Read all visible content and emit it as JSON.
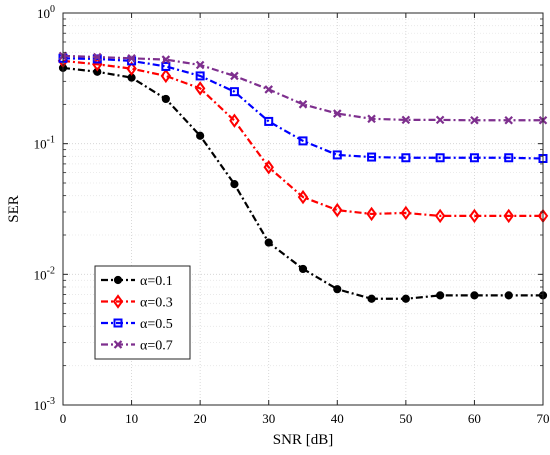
{
  "chart_data": {
    "type": "line",
    "xlabel": "SNR [dB]",
    "ylabel": "SER",
    "x": [
      0,
      5,
      10,
      15,
      20,
      25,
      30,
      35,
      40,
      45,
      50,
      55,
      60,
      65,
      70
    ],
    "xlim": [
      0,
      70
    ],
    "xticks": [
      0,
      10,
      20,
      30,
      40,
      50,
      60,
      70
    ],
    "xtick_labels": [
      "0",
      "10",
      "20",
      "30",
      "40",
      "50",
      "60",
      "70"
    ],
    "yscale": "log",
    "ylim": [
      0.001,
      1
    ],
    "yticks": [
      {
        "value": 1,
        "base": "10",
        "exp": "0"
      },
      {
        "value": 0.1,
        "base": "10",
        "exp": "-1"
      },
      {
        "value": 0.01,
        "base": "10",
        "exp": "-2"
      },
      {
        "value": 0.001,
        "base": "10",
        "exp": "-3"
      }
    ],
    "grid": true,
    "minor_grid": true,
    "legend_position": "bottom-left",
    "series": [
      {
        "name": "α=0.1",
        "color": "#000000",
        "marker": "circle",
        "values": [
          0.38,
          0.355,
          0.32,
          0.22,
          0.115,
          0.049,
          0.0175,
          0.011,
          0.0077,
          0.0065,
          0.0065,
          0.0069,
          0.0069,
          0.0069,
          0.0069
        ]
      },
      {
        "name": "α=0.3",
        "color": "#ff0000",
        "marker": "diamond",
        "values": [
          0.43,
          0.405,
          0.375,
          0.33,
          0.265,
          0.15,
          0.066,
          0.039,
          0.031,
          0.029,
          0.0295,
          0.028,
          0.028,
          0.028,
          0.028
        ]
      },
      {
        "name": "α=0.5",
        "color": "#0000ff",
        "marker": "square",
        "values": [
          0.45,
          0.445,
          0.43,
          0.39,
          0.33,
          0.25,
          0.148,
          0.105,
          0.082,
          0.079,
          0.078,
          0.078,
          0.078,
          0.078,
          0.077
        ]
      },
      {
        "name": "α=0.7",
        "color": "#7e2f8e",
        "marker": "x",
        "values": [
          0.47,
          0.46,
          0.45,
          0.44,
          0.4,
          0.33,
          0.26,
          0.2,
          0.17,
          0.155,
          0.152,
          0.152,
          0.151,
          0.151,
          0.151
        ]
      }
    ]
  }
}
